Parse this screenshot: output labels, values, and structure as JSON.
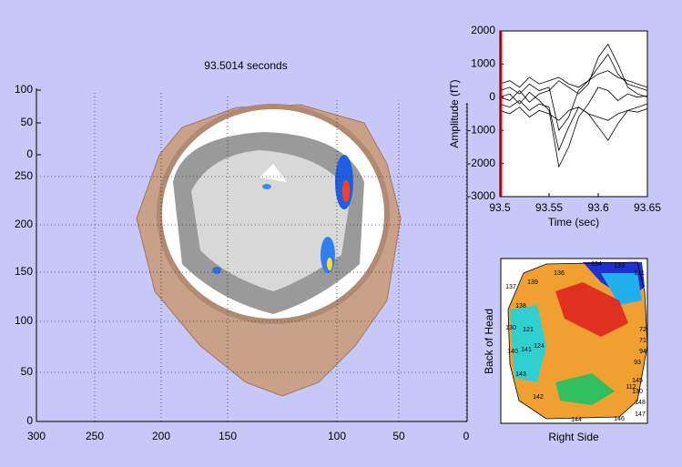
{
  "chart_data": [
    {
      "type": "surface3d",
      "title": "93.5014 seconds",
      "zticks": [
        100,
        50,
        0
      ],
      "yticks": [
        250,
        200,
        150,
        100,
        50,
        0
      ],
      "xticks": [
        300,
        250,
        200,
        150,
        100,
        50,
        0
      ],
      "grid": true
    },
    {
      "type": "line",
      "xlabel": "Time (sec)",
      "ylabel": "Amplitude (fT)",
      "xlim": [
        93.5,
        93.65
      ],
      "xticks": [
        93.5,
        93.55,
        93.6,
        93.65
      ],
      "ylim": [
        -3000,
        2000
      ],
      "yticks": [
        -3000,
        -2000,
        -1000,
        0,
        1000,
        2000
      ],
      "cursor": 93.5014,
      "cursor_color": "#ff0000",
      "x": [
        93.5,
        93.51,
        93.52,
        93.53,
        93.54,
        93.55,
        93.56,
        93.57,
        93.58,
        93.59,
        93.6,
        93.61,
        93.62,
        93.63,
        93.64,
        93.65
      ],
      "series": [
        {
          "color": "#000000",
          "values": [
            0,
            100,
            -200,
            150,
            -100,
            -400,
            -2100,
            -1500,
            -600,
            -200,
            300,
            200,
            -100,
            100,
            0,
            50
          ]
        },
        {
          "color": "#000000",
          "values": [
            0,
            -100,
            200,
            -150,
            100,
            200,
            500,
            300,
            100,
            400,
            1200,
            1600,
            1000,
            300,
            100,
            0
          ]
        },
        {
          "color": "#000000",
          "values": [
            200,
            300,
            100,
            400,
            200,
            300,
            -1000,
            -600,
            200,
            500,
            900,
            1300,
            700,
            400,
            300,
            200
          ]
        },
        {
          "color": "#000000",
          "values": [
            -200,
            -300,
            -100,
            -400,
            -200,
            -300,
            -1600,
            -900,
            -300,
            -500,
            -900,
            -1300,
            -800,
            -400,
            -300,
            -200
          ]
        },
        {
          "color": "#000000",
          "values": [
            400,
            500,
            300,
            600,
            400,
            500,
            600,
            400,
            300,
            500,
            700,
            800,
            600,
            500,
            400,
            300
          ]
        },
        {
          "color": "#000000",
          "values": [
            -400,
            -500,
            -300,
            -600,
            -400,
            -500,
            -700,
            -400,
            -300,
            -500,
            -600,
            -700,
            -500,
            -400,
            -450,
            -350
          ]
        }
      ]
    },
    {
      "type": "contour",
      "xlabel": "Right Side",
      "ylabel": "Back of Head",
      "sensor_labels": [
        "136",
        "134",
        "133",
        "131",
        "137",
        "138",
        "139",
        "130",
        "121",
        "140",
        "141",
        "143",
        "142",
        "144",
        "145",
        "146",
        "147",
        "148",
        "72",
        "71",
        "94",
        "93",
        "112",
        "130",
        "124"
      ]
    }
  ]
}
